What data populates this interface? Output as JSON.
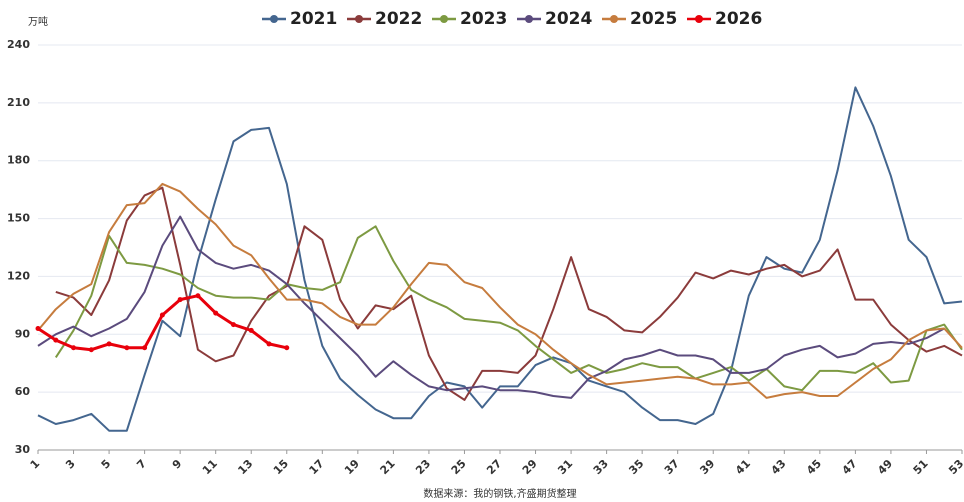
{
  "chart_data": {
    "type": "line",
    "unit_label": "万吨",
    "source": "数据来源：我的钢铁,齐盛期货整理",
    "categories": [
      "1",
      null,
      "3",
      null,
      "5",
      null,
      "7",
      null,
      "9",
      null,
      "11",
      null,
      "13",
      null,
      "15",
      null,
      "17",
      null,
      "19",
      null,
      "21",
      null,
      "23",
      null,
      "25",
      null,
      "27",
      null,
      "29",
      null,
      "31",
      null,
      "33",
      null,
      "35",
      null,
      "37",
      null,
      "39",
      null,
      "41",
      null,
      "43",
      null,
      "45",
      null,
      "47",
      null,
      "49",
      null,
      "51",
      null,
      "53"
    ],
    "ylim": [
      30,
      240
    ],
    "yticks": [
      30,
      60,
      90,
      120,
      150,
      180,
      210,
      240
    ],
    "grid": true,
    "legend": "top",
    "series": [
      {
        "name": "2021",
        "color": "#44668f",
        "values": [
          48,
          43.5,
          45.5,
          48.7,
          40,
          40,
          69,
          97,
          89,
          128,
          160,
          190,
          196,
          197,
          168,
          118,
          84,
          67,
          58.5,
          51,
          46.5,
          46.5,
          58,
          65,
          63,
          52,
          63,
          63,
          74,
          78,
          75,
          66,
          63,
          60,
          52,
          45.5,
          45.5,
          43.5,
          48.7,
          71,
          110,
          130,
          124,
          122,
          139,
          175,
          218,
          198,
          172,
          139,
          130,
          106,
          107
        ]
      },
      {
        "name": "2022",
        "color": "#8b3b3b",
        "values": [
          null,
          112,
          109,
          100,
          118,
          149,
          162,
          166,
          126,
          82,
          76,
          79,
          97,
          110,
          115,
          146,
          139,
          108,
          93,
          105,
          103,
          110,
          79,
          62,
          56,
          71,
          71,
          70,
          79,
          103,
          130,
          103,
          99,
          92,
          91,
          99,
          109,
          122,
          119,
          123,
          121,
          124,
          126,
          120,
          123,
          134,
          108,
          108,
          95,
          87,
          81,
          84,
          79
        ]
      },
      {
        "name": "2023",
        "color": "#7d9a42",
        "values": [
          null,
          78,
          92,
          110,
          141,
          127,
          126,
          124,
          121,
          114,
          110,
          109,
          109,
          108,
          116,
          114,
          113,
          117,
          140,
          146,
          128,
          113,
          108,
          104,
          98,
          97,
          96,
          92,
          84,
          77,
          70,
          74,
          70,
          72,
          75,
          73,
          73,
          67,
          70,
          73,
          66,
          72,
          63,
          61,
          71,
          71,
          70,
          75,
          65,
          66,
          92,
          95,
          82
        ]
      },
      {
        "name": "2024",
        "color": "#5b4b7d",
        "values": [
          84,
          90,
          94,
          89,
          93,
          98,
          112,
          136,
          151,
          134,
          127,
          124,
          126,
          123,
          116,
          106,
          97,
          88,
          79,
          68,
          76,
          69,
          63,
          61,
          62,
          63,
          61,
          61,
          60,
          58,
          57,
          67,
          71,
          77,
          79,
          82,
          79,
          79,
          77,
          70,
          70,
          72,
          79,
          82,
          84,
          78,
          80,
          85,
          86,
          85,
          88,
          93,
          null
        ]
      },
      {
        "name": "2025",
        "color": "#c67c3e",
        "values": [
          92,
          103,
          111,
          116,
          143,
          157,
          158,
          168,
          164,
          155,
          147,
          136,
          131,
          119,
          108,
          108,
          106,
          99,
          95,
          95,
          104,
          116,
          127,
          126,
          117,
          114,
          104,
          95,
          90,
          82,
          75,
          69,
          64,
          65,
          66,
          67,
          68,
          67,
          64,
          64,
          65,
          57,
          59,
          60,
          58,
          58,
          65,
          72,
          77,
          87,
          92,
          93,
          83
        ]
      },
      {
        "name": "2026",
        "color": "#e8000b",
        "values": [
          93,
          87,
          83,
          82,
          85,
          83,
          83,
          100,
          108,
          110,
          101,
          95,
          92,
          85,
          83,
          null,
          null,
          null,
          null,
          null,
          null,
          null,
          null,
          null,
          null,
          null,
          null,
          null,
          null,
          null,
          null,
          null,
          null,
          null,
          null,
          null,
          null,
          null,
          null,
          null,
          null,
          null,
          null,
          null,
          null,
          null,
          null,
          null,
          null,
          null,
          null,
          null,
          null
        ]
      }
    ]
  }
}
